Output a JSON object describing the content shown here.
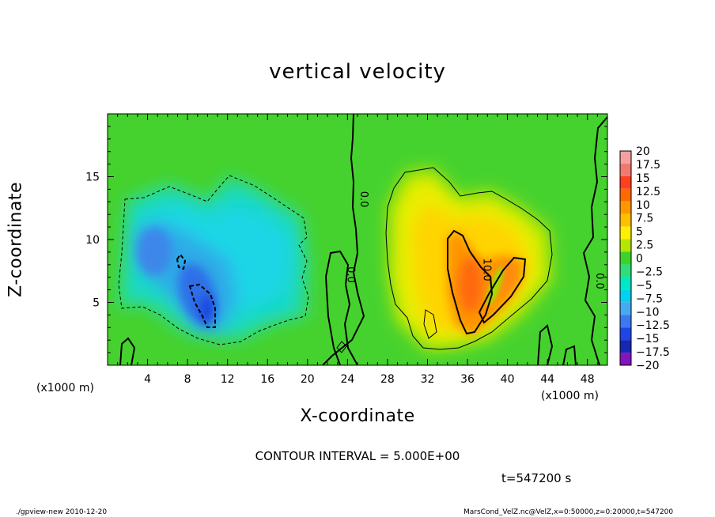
{
  "chart_data": {
    "type": "heatmap",
    "title": "vertical velocity",
    "xlabel": "X-coordinate",
    "ylabel": "Z-coordinate",
    "x_unit": "(x1000 m)",
    "z_unit": "(x1000 m)",
    "xlim": [
      0,
      50
    ],
    "ylim": [
      0,
      20
    ],
    "x_ticks": [
      4,
      8,
      12,
      16,
      20,
      24,
      28,
      32,
      36,
      40,
      44,
      48
    ],
    "x_tick_labels": [
      "4",
      "8",
      "12",
      "16",
      "20",
      "24",
      "28",
      "32",
      "36",
      "40",
      "44",
      "48"
    ],
    "y_ticks": [
      5,
      10,
      15
    ],
    "y_tick_labels": [
      "5",
      "10",
      "15"
    ],
    "colorbar": {
      "labels": [
        "20",
        "17.5",
        "15",
        "12.5",
        "10",
        "7.5",
        "5",
        "2.5",
        "0",
        "−2.5",
        "−5",
        "−7.5",
        "−10",
        "−12.5",
        "−15",
        "−17.5",
        "−20"
      ],
      "colors": [
        "#f3a0a0",
        "#f07a70",
        "#ff4020",
        "#ff6a00",
        "#ff9800",
        "#ffc000",
        "#ffef00",
        "#b4e600",
        "#3cd22c",
        "#2ede78",
        "#00e6c8",
        "#00d2f0",
        "#46aaf0",
        "#3c78f0",
        "#1e46e6",
        "#1428b4",
        "#8214be"
      ]
    },
    "features": [
      {
        "kind": "updraft",
        "center": [
          37,
          8
        ],
        "max_value": 10.0
      },
      {
        "kind": "downdraft",
        "center": [
          9.5,
          6
        ],
        "min_value": -10.0
      }
    ],
    "contour_labels": [
      {
        "text": "0.0",
        "x": 25.3,
        "z": 13.2,
        "rotate": 90
      },
      {
        "text": "0.0",
        "x": 24.0,
        "z": 7.2,
        "rotate": 90
      },
      {
        "text": "10.0",
        "x": 37.6,
        "z": 7.6,
        "rotate": 90
      },
      {
        "text": "0.0",
        "x": 48.9,
        "z": 6.7,
        "rotate": 90
      }
    ],
    "contour_interval": "CONTOUR INTERVAL = 5.000E+00",
    "time_label": "t=547200 s"
  },
  "footer": {
    "left": "./gpview-new  2010-12-20",
    "right": "MarsCond_VelZ.nc@VelZ,x=0:50000,z=0:20000,t=547200"
  }
}
